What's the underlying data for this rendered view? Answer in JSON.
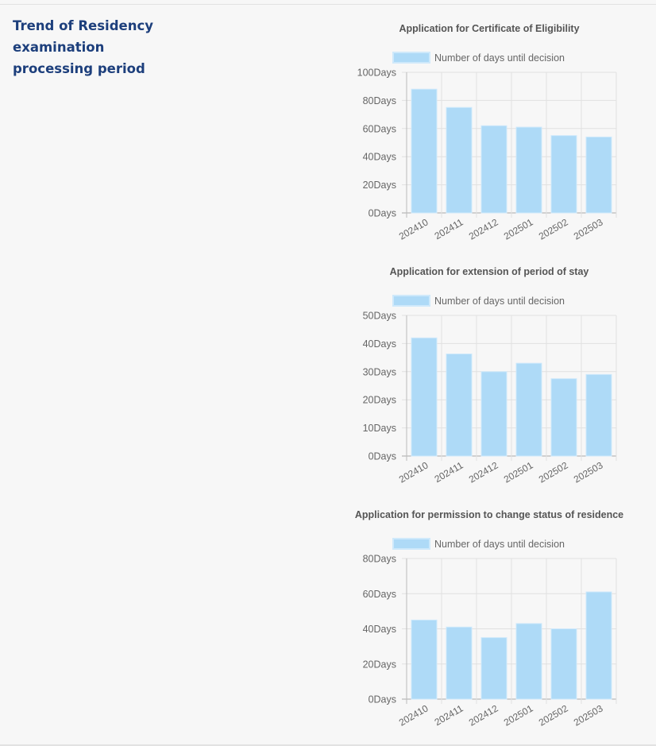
{
  "page": {
    "title": "Trend of Residency examination processing period"
  },
  "colors": {
    "bar_fill": "#aedaf7",
    "bar_border": "#cfe9fb",
    "title": "#1d3f7c",
    "text": "#666666",
    "grid": "#e0e0e0"
  },
  "chart_data": [
    {
      "type": "bar",
      "title": "Application for Certificate of Eligibility",
      "legend": "Number of days until decision",
      "legend_position": "top",
      "categories": [
        "202410",
        "202411",
        "202412",
        "202501",
        "202502",
        "202503"
      ],
      "series": [
        {
          "name": "Number of days until decision",
          "values": [
            88,
            75,
            62,
            61,
            55,
            54
          ]
        }
      ],
      "ylim": [
        0,
        100
      ],
      "yticks": [
        "0Days",
        "20Days",
        "40Days",
        "60Days",
        "80Days",
        "100Days"
      ],
      "grid": true
    },
    {
      "type": "bar",
      "title": "Application for extension of period of stay",
      "legend": "Number of days until decision",
      "legend_position": "top",
      "categories": [
        "202410",
        "202411",
        "202412",
        "202501",
        "202502",
        "202503"
      ],
      "series": [
        {
          "name": "Number of days until decision",
          "values": [
            42,
            36.3,
            30,
            33,
            27.5,
            29
          ]
        }
      ],
      "ylim": [
        0,
        50
      ],
      "yticks": [
        "0Days",
        "10Days",
        "20Days",
        "30Days",
        "40Days",
        "50Days"
      ],
      "grid": true
    },
    {
      "type": "bar",
      "title": "Application for permission to change status of residence",
      "legend": "Number of days until decision",
      "legend_position": "top",
      "categories": [
        "202410",
        "202411",
        "202412",
        "202501",
        "202502",
        "202503"
      ],
      "series": [
        {
          "name": "Number of days until decision",
          "values": [
            45,
            41,
            35,
            43,
            40,
            61
          ]
        }
      ],
      "ylim": [
        0,
        80
      ],
      "yticks": [
        "0Days",
        "20Days",
        "40Days",
        "60Days",
        "80Days"
      ],
      "grid": true
    }
  ]
}
